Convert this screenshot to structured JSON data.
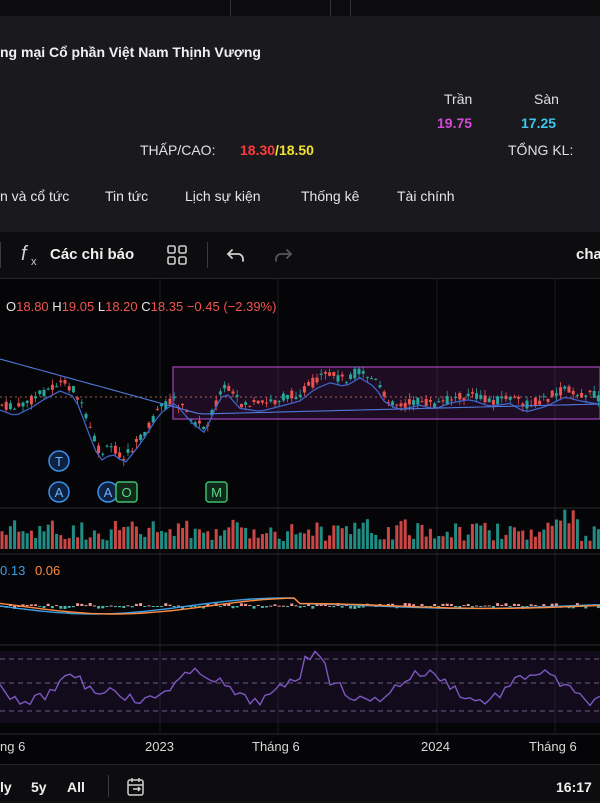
{
  "header": {
    "company_name": "ng mại Cổ phần Việt Nam Thịnh Vượng",
    "ceiling_label": "Trần",
    "ceiling_value": "19.75",
    "floor_label": "Sàn",
    "floor_value": "17.25",
    "low_high_label": "THẤP/CAO:",
    "low_value": "18.30",
    "slash": "/",
    "high_value": "18.50",
    "total_volume_label": "TỔNG KL:",
    "colors": {
      "ceiling": "#d24bd8",
      "floor": "#3ec6e8",
      "low": "#ff3b3b",
      "high": "#f2e230"
    }
  },
  "tabs": [
    {
      "label": "n và cổ tức"
    },
    {
      "label": "Tin tức"
    },
    {
      "label": "Lịch sự kiện"
    },
    {
      "label": "Thống kê"
    },
    {
      "label": "Tài chính"
    }
  ],
  "toolbar": {
    "indicators_label": "Các chỉ báo",
    "chart_label": "cha",
    "icons": [
      "fx-icon",
      "templates-icon",
      "undo-icon",
      "redo-icon"
    ]
  },
  "ohlc": {
    "o_label": "O",
    "o_value": "18.80",
    "h_label": "H",
    "h_value": "19.05",
    "l_label": "L",
    "l_value": "18.20",
    "c_label": "C",
    "c_value": "18.35",
    "change": "−0.45 (−2.39%)"
  },
  "macd": {
    "macd_value": "0.13",
    "signal_value": "0.06"
  },
  "markers": [
    {
      "letter": "T",
      "type": "circle"
    },
    {
      "letter": "A",
      "type": "circle"
    },
    {
      "letter": "A",
      "type": "circle"
    },
    {
      "letter": "O",
      "type": "square"
    },
    {
      "letter": "M",
      "type": "square"
    }
  ],
  "x_axis": [
    "ng 6",
    "2023",
    "Tháng 6",
    "2024",
    "Tháng 6"
  ],
  "ranges": [
    "ly",
    "5y",
    "All"
  ],
  "time": "16:17",
  "colors": {
    "up": "#26a69a",
    "down": "#ef5350",
    "ma": "#3f63c8",
    "rsi": "#7e57c2",
    "box": "#9b3fb0"
  }
}
